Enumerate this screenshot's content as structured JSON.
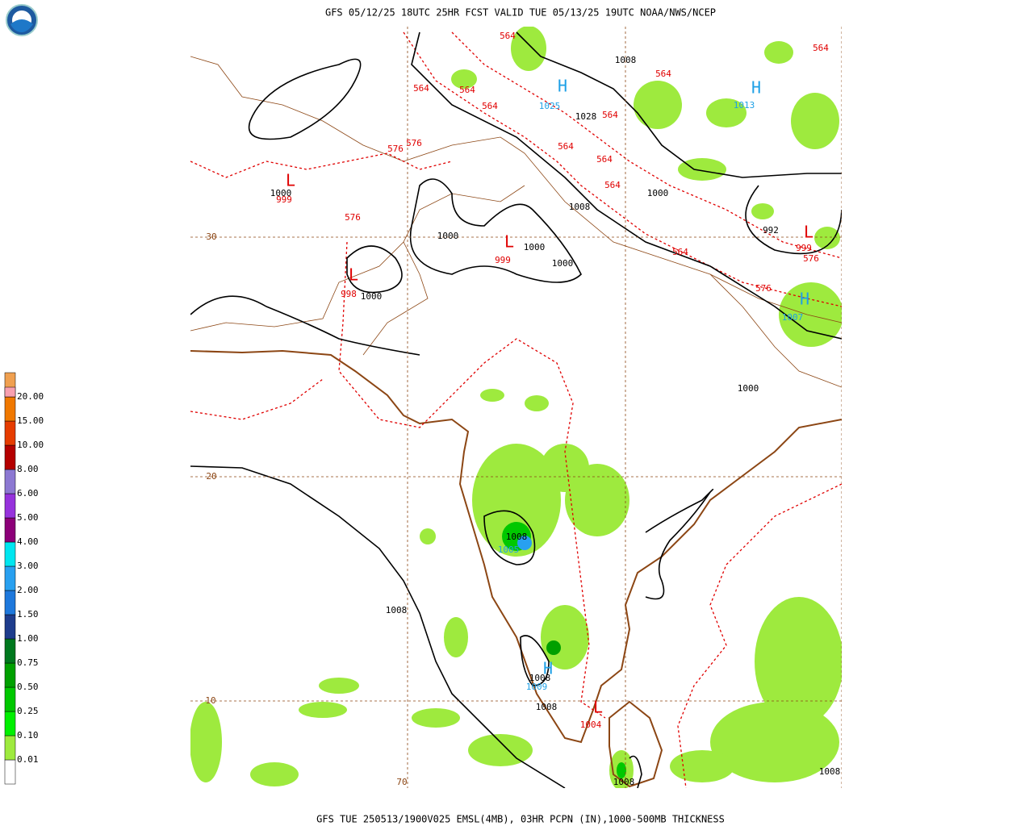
{
  "header": {
    "title": "GFS 05/12/25 18UTC 25HR FCST VALID TUE 05/13/25 19UTC NOAA/NWS/NCEP"
  },
  "footer": {
    "title": "GFS TUE 250513/1900V025 EMSL(4MB), 03HR PCPN (IN),1000-500MB THICKNESS"
  },
  "legend": {
    "base_color": "#ffffff",
    "levels": [
      {
        "label": "0.01",
        "color": "#9eea3e"
      },
      {
        "label": "0.10",
        "color": "#00f000"
      },
      {
        "label": "0.25",
        "color": "#00c800"
      },
      {
        "label": "0.50",
        "color": "#00a000"
      },
      {
        "label": "0.75",
        "color": "#00781e"
      },
      {
        "label": "1.00",
        "color": "#1e3c8c"
      },
      {
        "label": "1.50",
        "color": "#1e78dc"
      },
      {
        "label": "2.00",
        "color": "#28a0f0"
      },
      {
        "label": "3.00",
        "color": "#00e6f0"
      },
      {
        "label": "4.00",
        "color": "#8c0078"
      },
      {
        "label": "5.00",
        "color": "#9632dc"
      },
      {
        "label": "6.00",
        "color": "#8c78d2"
      },
      {
        "label": "8.00",
        "color": "#b40000"
      },
      {
        "label": "10.00",
        "color": "#e63c00"
      },
      {
        "label": "15.00",
        "color": "#f07800"
      },
      {
        "label": "20.00",
        "color": "#f0a050"
      }
    ],
    "top_color": "#f8a0b0"
  },
  "map": {
    "kind_colors": {
      "thickness": "#e00000",
      "pressure": "#000000",
      "high": "#1ea0e6",
      "low": "#e00000",
      "grid": "#8c4614"
    },
    "labels": [
      {
        "text": "564",
        "kind": "thickness"
      },
      {
        "text": "564",
        "kind": "thickness"
      },
      {
        "text": "1008",
        "kind": "pressure"
      },
      {
        "text": "564",
        "kind": "thickness"
      },
      {
        "text": "H",
        "kind": "high"
      },
      {
        "text": "H",
        "kind": "high"
      },
      {
        "text": "564",
        "kind": "thickness"
      },
      {
        "text": "564",
        "kind": "thickness"
      },
      {
        "text": "1025",
        "kind": "high"
      },
      {
        "text": "1013",
        "kind": "high"
      },
      {
        "text": "564",
        "kind": "thickness"
      },
      {
        "text": "1028",
        "kind": "pressure"
      },
      {
        "text": "564",
        "kind": "thickness"
      },
      {
        "text": "576",
        "kind": "thickness"
      },
      {
        "text": "576",
        "kind": "thickness"
      },
      {
        "text": "564",
        "kind": "thickness"
      },
      {
        "text": "564",
        "kind": "thickness"
      },
      {
        "text": "L",
        "kind": "low"
      },
      {
        "text": "1000",
        "kind": "pressure"
      },
      {
        "text": "999",
        "kind": "low"
      },
      {
        "text": "564",
        "kind": "thickness"
      },
      {
        "text": "1000",
        "kind": "pressure"
      },
      {
        "text": "1008",
        "kind": "pressure"
      },
      {
        "text": "576",
        "kind": "thickness"
      },
      {
        "text": "L",
        "kind": "low"
      },
      {
        "text": "992",
        "kind": "pressure"
      },
      {
        "text": "1000",
        "kind": "pressure"
      },
      {
        "text": "L",
        "kind": "low"
      },
      {
        "text": "1000",
        "kind": "pressure"
      },
      {
        "text": "999",
        "kind": "low"
      },
      {
        "text": "999",
        "kind": "low"
      },
      {
        "text": "576",
        "kind": "thickness"
      },
      {
        "text": "564",
        "kind": "thickness"
      },
      {
        "text": "1000",
        "kind": "pressure"
      },
      {
        "text": "L",
        "kind": "low"
      },
      {
        "text": "998",
        "kind": "low"
      },
      {
        "text": "1000",
        "kind": "pressure"
      },
      {
        "text": "576",
        "kind": "thickness"
      },
      {
        "text": "H",
        "kind": "high"
      },
      {
        "text": "1007",
        "kind": "high"
      },
      {
        "text": "1000",
        "kind": "pressure"
      },
      {
        "text": "1008",
        "kind": "pressure"
      },
      {
        "text": "1005",
        "kind": "high"
      },
      {
        "text": "1008",
        "kind": "pressure"
      },
      {
        "text": "H",
        "kind": "high"
      },
      {
        "text": "1008",
        "kind": "pressure"
      },
      {
        "text": "1009",
        "kind": "high"
      },
      {
        "text": "1008",
        "kind": "pressure"
      },
      {
        "text": "L",
        "kind": "low"
      },
      {
        "text": "1004",
        "kind": "low"
      },
      {
        "text": "1008",
        "kind": "pressure"
      },
      {
        "text": "1008",
        "kind": "pressure"
      },
      {
        "text": "30",
        "kind": "grid"
      },
      {
        "text": "20",
        "kind": "grid"
      },
      {
        "text": "10",
        "kind": "grid"
      },
      {
        "text": "70",
        "kind": "grid"
      }
    ]
  }
}
